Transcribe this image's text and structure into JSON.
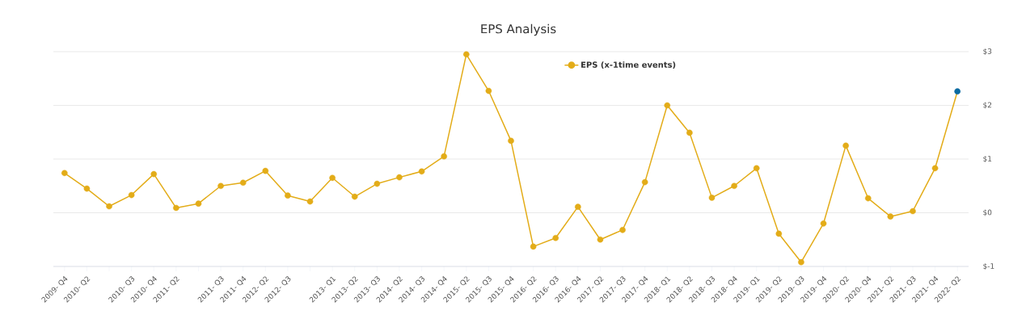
{
  "chart_data": {
    "type": "line",
    "title": "EPS Analysis",
    "categories": [
      "2009- Q4",
      "2010- Q2",
      null,
      "2010- Q3",
      "2010- Q4",
      "2011- Q2",
      null,
      "2011- Q3",
      "2011- Q4",
      "2012- Q2",
      "2012- Q3",
      null,
      "2013- Q1",
      "2013- Q2",
      "2013- Q3",
      "2014- Q2",
      "2014- Q3",
      "2014- Q4",
      "2015- Q2",
      "2015- Q3",
      "2015- Q4",
      "2016- Q2",
      "2016- Q3",
      "2016- Q4",
      "2017- Q2",
      "2017- Q3",
      "2017- Q4",
      "2018- Q1",
      "2018- Q2",
      "2018- Q3",
      "2018- Q4",
      "2019- Q1",
      "2019- Q2",
      "2019- Q3",
      "2019- Q4",
      "2020- Q2",
      "2020- Q4",
      "2021- Q2",
      "2021- Q3",
      "2021- Q4",
      "2022- Q2"
    ],
    "series": [
      {
        "name": "EPS (x-1time events)",
        "color": "#e3ac18",
        "colors": [
          "#e3ac18",
          "#e3ac18",
          "#e3ac18",
          "#e3ac18",
          "#e3ac18",
          "#e3ac18",
          "#e3ac18",
          "#e3ac18",
          "#e3ac18",
          "#e3ac18",
          "#e3ac18",
          "#e3ac18",
          "#e3ac18",
          "#e3ac18",
          "#e3ac18",
          "#e3ac18",
          "#e3ac18",
          "#e3ac18",
          "#e3ac18",
          "#e3ac18",
          "#e3ac18",
          "#e3ac18",
          "#e3ac18",
          "#e3ac18",
          "#e3ac18",
          "#e3ac18",
          "#e3ac18",
          "#e3ac18",
          "#e3ac18",
          "#e3ac18",
          "#e3ac18",
          "#e3ac18",
          "#e3ac18",
          "#e3ac18",
          "#e3ac18",
          "#e3ac18",
          "#e3ac18",
          "#e3ac18",
          "#e3ac18",
          "#e3ac18",
          "#0a6aa1"
        ],
        "values": [
          0.74,
          0.45,
          0.12,
          0.33,
          0.72,
          0.09,
          0.17,
          0.5,
          0.56,
          0.78,
          0.32,
          0.21,
          0.65,
          0.3,
          0.54,
          0.66,
          0.77,
          1.05,
          2.95,
          2.27,
          1.34,
          -0.63,
          -0.47,
          0.11,
          -0.5,
          -0.32,
          0.57,
          2.0,
          1.49,
          0.28,
          0.5,
          0.83,
          -0.39,
          -0.92,
          -0.2,
          1.25,
          0.27,
          -0.07,
          0.03,
          0.83,
          2.26
        ]
      }
    ],
    "ylim": [
      -1,
      3
    ],
    "yticks": [
      {
        "value": -1,
        "label": "$-1"
      },
      {
        "value": 0,
        "label": "$0"
      },
      {
        "value": 1,
        "label": "$1"
      },
      {
        "value": 2,
        "label": "$2"
      },
      {
        "value": 3,
        "label": "$3"
      }
    ],
    "grid": "y",
    "legend": "top",
    "marker": "circle",
    "line_style": "solid"
  }
}
